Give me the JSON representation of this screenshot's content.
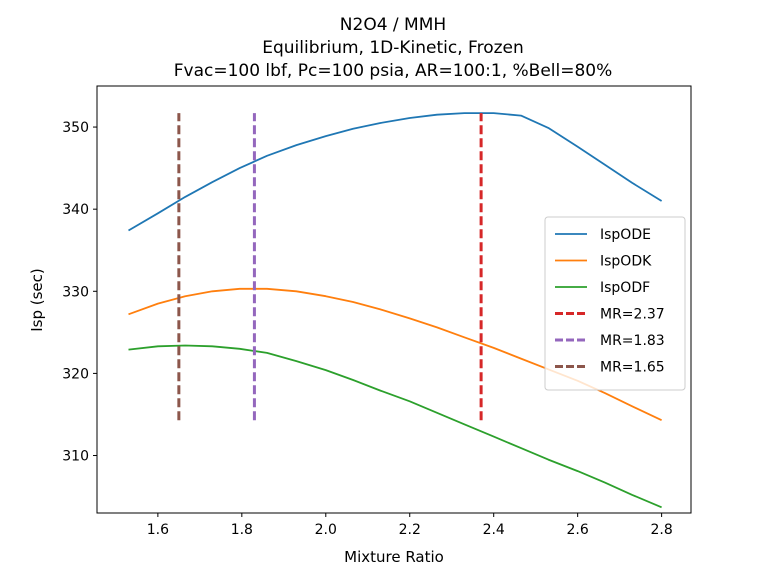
{
  "chart_data": {
    "type": "line",
    "title_lines": [
      "N2O4 / MMH",
      "Equilibrium, 1D-Kinetic, Frozen",
      "Fvac=100 lbf, Pc=100 psia, AR=100:1, %Bell=80%"
    ],
    "xlabel": "Mixture Ratio",
    "ylabel": "Isp (sec)",
    "xlim": [
      1.455,
      2.87
    ],
    "ylim": [
      303,
      355
    ],
    "xticks": [
      1.6,
      1.8,
      2.0,
      2.2,
      2.4,
      2.6,
      2.8
    ],
    "xtick_labels": [
      "1.6",
      "1.8",
      "2.0",
      "2.2",
      "2.4",
      "2.6",
      "2.8"
    ],
    "yticks": [
      310,
      320,
      330,
      340,
      350
    ],
    "ytick_labels": [
      "310",
      "320",
      "330",
      "340",
      "350"
    ],
    "grid": false,
    "legend_position": "center-right",
    "x": [
      1.53,
      1.6,
      1.665,
      1.73,
      1.795,
      1.86,
      1.93,
      2.0,
      2.065,
      2.13,
      2.2,
      2.265,
      2.33,
      2.4,
      2.465,
      2.53,
      2.6,
      2.665,
      2.73,
      2.8
    ],
    "series": [
      {
        "name": "IspODE",
        "color": "#1f77b4",
        "values": [
          337.4,
          339.5,
          341.5,
          343.3,
          345.0,
          346.5,
          347.8,
          348.9,
          349.8,
          350.5,
          351.1,
          351.5,
          351.7,
          351.7,
          351.4,
          349.9,
          347.6,
          345.4,
          343.2,
          341.0
        ]
      },
      {
        "name": "IspODK",
        "color": "#ff7f0e",
        "values": [
          327.2,
          328.5,
          329.4,
          330.0,
          330.3,
          330.3,
          330.0,
          329.4,
          328.7,
          327.8,
          326.7,
          325.6,
          324.4,
          323.1,
          321.8,
          320.5,
          319.1,
          317.6,
          316.0,
          314.3
        ]
      },
      {
        "name": "IspODF",
        "color": "#2ca02c",
        "values": [
          322.9,
          323.3,
          323.4,
          323.3,
          323.0,
          322.5,
          321.5,
          320.4,
          319.2,
          317.9,
          316.6,
          315.2,
          313.8,
          312.3,
          310.9,
          309.5,
          308.1,
          306.7,
          305.2,
          303.7
        ]
      }
    ],
    "vlines": [
      {
        "name": "MR=2.37",
        "x": 2.37,
        "y_range": [
          314.3,
          351.7
        ],
        "color": "#d62728"
      },
      {
        "name": "MR=1.83",
        "x": 1.83,
        "y_range": [
          314.3,
          351.7
        ],
        "color": "#9467bd"
      },
      {
        "name": "MR=1.65",
        "x": 1.65,
        "y_range": [
          314.3,
          351.7
        ],
        "color": "#8c564b"
      }
    ]
  }
}
